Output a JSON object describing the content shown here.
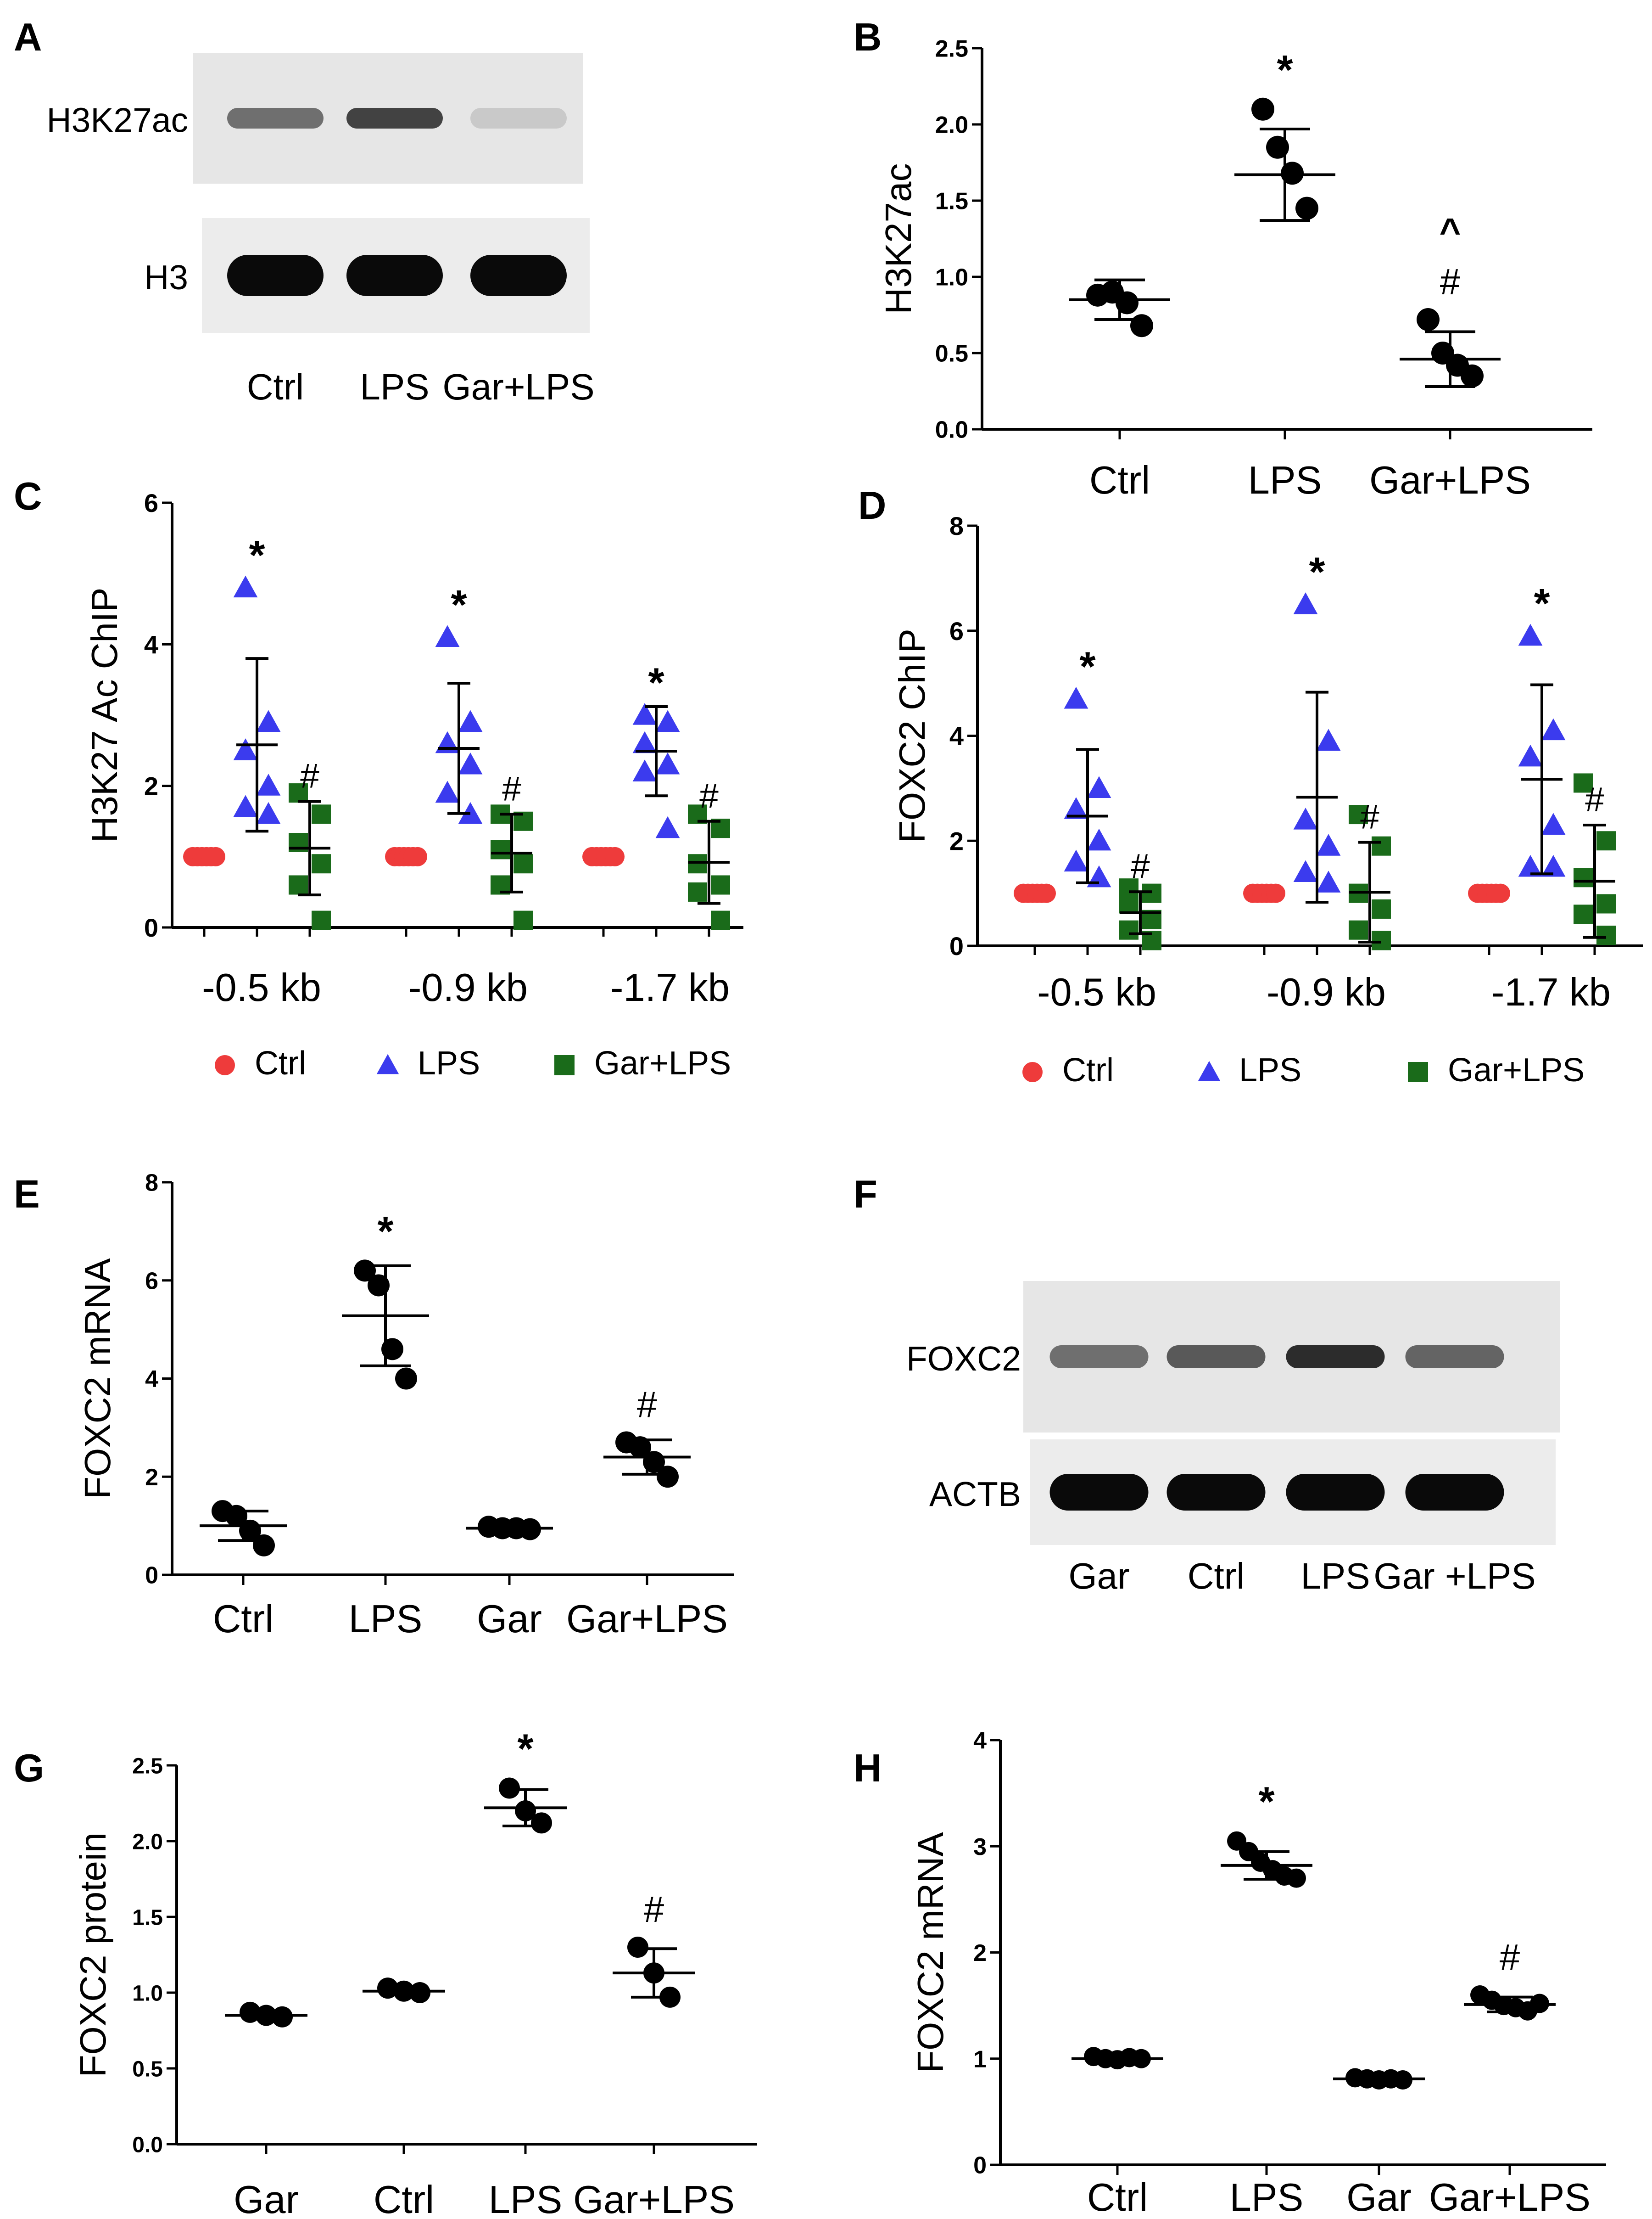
{
  "figure": {
    "panel_letters": [
      "A",
      "B",
      "C",
      "D",
      "E",
      "F",
      "G",
      "H"
    ],
    "blots": {
      "A": {
        "rows": [
          {
            "label": "H3K27ac",
            "band_intensity": [
              0.55,
              0.75,
              0.15
            ]
          },
          {
            "label": "H3",
            "band_intensity": [
              1.0,
              1.0,
              1.0
            ]
          }
        ],
        "lanes": [
          "Ctrl",
          "LPS",
          "Gar+LPS"
        ]
      },
      "F": {
        "rows": [
          {
            "label": "FOXC2",
            "band_intensity": [
              0.55,
              0.65,
              0.85,
              0.6
            ]
          },
          {
            "label": "ACTB",
            "band_intensity": [
              1.0,
              1.0,
              1.0,
              1.0
            ]
          }
        ],
        "lanes": [
          "Gar",
          "Ctrl",
          "LPS",
          "Gar +LPS"
        ]
      }
    },
    "legend": {
      "items": [
        {
          "label": "Ctrl",
          "marker": "circle",
          "color": "#ee3b3b"
        },
        {
          "label": "LPS",
          "marker": "triangle",
          "color": "#3b3bee"
        },
        {
          "label": "Gar+LPS",
          "marker": "square",
          "color": "#1a6b1a"
        }
      ]
    }
  },
  "chart_data": [
    {
      "panel": "B",
      "type": "scatter",
      "title": "",
      "xlabel": "",
      "ylabel": "H3K27ac",
      "ylim": [
        0,
        2.5
      ],
      "yticks": [
        "0.0",
        "0.5",
        "1.0",
        "1.5",
        "2.0",
        "2.5"
      ],
      "categories": [
        "Ctrl",
        "LPS",
        "Gar+LPS"
      ],
      "series": [
        {
          "name": "Ctrl",
          "points": [
            0.88,
            0.9,
            0.83,
            0.68
          ],
          "mean": 0.85,
          "sd": 0.13,
          "annotation": ""
        },
        {
          "name": "LPS",
          "points": [
            2.1,
            1.85,
            1.68,
            1.45
          ],
          "mean": 1.67,
          "sd": 0.3,
          "annotation": "*"
        },
        {
          "name": "Gar+LPS",
          "points": [
            0.72,
            0.5,
            0.42,
            0.35
          ],
          "mean": 0.46,
          "sd": 0.18,
          "annotation": "^\n#"
        }
      ]
    },
    {
      "panel": "C",
      "type": "scatter",
      "title": "",
      "xlabel": "",
      "ylabel": "H3K27 Ac ChIP",
      "ylim": [
        0,
        6
      ],
      "yticks": [
        "0",
        "2",
        "4",
        "6"
      ],
      "categories": [
        "-0.5 kb",
        "-0.9 kb",
        "-1.7 kb"
      ],
      "series_names": [
        "Ctrl",
        "LPS",
        "Gar+LPS"
      ],
      "groups": [
        {
          "category": "-0.5 kb",
          "series": [
            {
              "name": "Ctrl",
              "points": [
                1,
                1,
                1,
                1,
                1,
                1
              ],
              "mean": 1.0,
              "sd": 0.0,
              "annotation": ""
            },
            {
              "name": "LPS",
              "points": [
                4.8,
                2.9,
                2.5,
                2.0,
                1.7,
                1.6
              ],
              "mean": 2.58,
              "sd": 1.22,
              "annotation": "*"
            },
            {
              "name": "Gar+LPS",
              "points": [
                1.9,
                1.6,
                1.2,
                0.9,
                0.6,
                0.1
              ],
              "mean": 1.12,
              "sd": 0.66,
              "annotation": "#"
            }
          ]
        },
        {
          "category": "-0.9 kb",
          "series": [
            {
              "name": "Ctrl",
              "points": [
                1,
                1,
                1,
                1,
                1,
                1
              ],
              "mean": 1.0,
              "sd": 0.0,
              "annotation": ""
            },
            {
              "name": "LPS",
              "points": [
                4.1,
                2.9,
                2.6,
                2.3,
                1.9,
                1.6
              ],
              "mean": 2.53,
              "sd": 0.92,
              "annotation": "*"
            },
            {
              "name": "Gar+LPS",
              "points": [
                1.6,
                1.5,
                1.1,
                0.9,
                0.6,
                0.1
              ],
              "mean": 1.05,
              "sd": 0.55,
              "annotation": "#"
            }
          ]
        },
        {
          "category": "-1.7 kb",
          "series": [
            {
              "name": "Ctrl",
              "points": [
                1,
                1,
                1,
                1,
                1,
                1
              ],
              "mean": 1.0,
              "sd": 0.0,
              "annotation": ""
            },
            {
              "name": "LPS",
              "points": [
                3.0,
                2.9,
                2.6,
                2.3,
                2.2,
                1.4
              ],
              "mean": 2.49,
              "sd": 0.63,
              "annotation": "*"
            },
            {
              "name": "Gar+LPS",
              "points": [
                1.6,
                1.4,
                0.9,
                0.6,
                0.5,
                0.1
              ],
              "mean": 0.92,
              "sd": 0.58,
              "annotation": "#"
            }
          ]
        }
      ]
    },
    {
      "panel": "D",
      "type": "scatter",
      "title": "",
      "xlabel": "",
      "ylabel": "FOXC2 ChIP",
      "ylim": [
        0,
        8
      ],
      "yticks": [
        "0",
        "2",
        "4",
        "6",
        "8"
      ],
      "categories": [
        "-0.5 kb",
        "-0.9 kb",
        "-1.7 kb"
      ],
      "series_names": [
        "Ctrl",
        "LPS",
        "Gar+LPS"
      ],
      "groups": [
        {
          "category": "-0.5 kb",
          "series": [
            {
              "name": "Ctrl",
              "points": [
                1,
                1,
                1,
                1,
                1,
                1
              ],
              "mean": 1.0,
              "sd": 0.0,
              "annotation": ""
            },
            {
              "name": "LPS",
              "points": [
                4.7,
                3.0,
                2.6,
                2.0,
                1.6,
                1.3
              ],
              "mean": 2.47,
              "sd": 1.27,
              "annotation": "*"
            },
            {
              "name": "Gar+LPS",
              "points": [
                1.1,
                1.0,
                0.8,
                0.5,
                0.3,
                0.1
              ],
              "mean": 0.63,
              "sd": 0.4,
              "annotation": "#"
            }
          ]
        },
        {
          "category": "-0.9 kb",
          "series": [
            {
              "name": "Ctrl",
              "points": [
                1,
                1,
                1,
                1,
                1,
                1
              ],
              "mean": 1.0,
              "sd": 0.0,
              "annotation": ""
            },
            {
              "name": "LPS",
              "points": [
                6.5,
                3.9,
                2.4,
                1.9,
                1.4,
                1.2
              ],
              "mean": 2.83,
              "sd": 2.0,
              "annotation": "*"
            },
            {
              "name": "Gar+LPS",
              "points": [
                2.5,
                1.9,
                1.0,
                0.7,
                0.3,
                0.1
              ],
              "mean": 1.02,
              "sd": 0.95,
              "annotation": "#"
            }
          ]
        },
        {
          "category": "-1.7 kb",
          "series": [
            {
              "name": "Ctrl",
              "points": [
                1,
                1,
                1,
                1,
                1,
                1
              ],
              "mean": 1.0,
              "sd": 0.0,
              "annotation": ""
            },
            {
              "name": "LPS",
              "points": [
                5.9,
                4.1,
                3.6,
                2.3,
                1.5,
                1.5
              ],
              "mean": 3.17,
              "sd": 1.8,
              "annotation": "*"
            },
            {
              "name": "Gar+LPS",
              "points": [
                3.1,
                2.0,
                1.3,
                0.8,
                0.6,
                0.2
              ],
              "mean": 1.23,
              "sd": 1.07,
              "annotation": "#"
            }
          ]
        }
      ]
    },
    {
      "panel": "E",
      "type": "scatter",
      "title": "",
      "xlabel": "",
      "ylabel": "FOXC2 mRNA",
      "ylim": [
        0,
        8
      ],
      "yticks": [
        "0",
        "2",
        "4",
        "6",
        "8"
      ],
      "categories": [
        "Ctrl",
        "LPS",
        "Gar",
        "Gar+LPS"
      ],
      "series": [
        {
          "name": "Ctrl",
          "points": [
            1.3,
            1.2,
            0.9,
            0.6
          ],
          "mean": 1.0,
          "sd": 0.3,
          "annotation": ""
        },
        {
          "name": "LPS",
          "points": [
            6.2,
            5.9,
            4.6,
            4.0
          ],
          "mean": 5.28,
          "sd": 1.02,
          "annotation": "*"
        },
        {
          "name": "Gar",
          "points": [
            0.98,
            0.95,
            0.95,
            0.93
          ],
          "mean": 0.95,
          "sd": 0.03,
          "annotation": ""
        },
        {
          "name": "Gar+LPS",
          "points": [
            2.7,
            2.6,
            2.3,
            2.0
          ],
          "mean": 2.4,
          "sd": 0.35,
          "annotation": "#"
        }
      ]
    },
    {
      "panel": "G",
      "type": "scatter",
      "title": "",
      "xlabel": "",
      "ylabel": "FOXC2 protein",
      "ylim": [
        0,
        2.5
      ],
      "yticks": [
        "0.0",
        "0.5",
        "1.0",
        "1.5",
        "2.0",
        "2.5"
      ],
      "categories": [
        "Gar",
        "Ctrl",
        "LPS",
        "Gar+LPS"
      ],
      "series": [
        {
          "name": "Gar",
          "points": [
            0.87,
            0.85,
            0.84
          ],
          "mean": 0.85,
          "sd": 0.02,
          "annotation": ""
        },
        {
          "name": "Ctrl",
          "points": [
            1.03,
            1.01,
            1.0
          ],
          "mean": 1.01,
          "sd": 0.02,
          "annotation": ""
        },
        {
          "name": "LPS",
          "points": [
            2.35,
            2.2,
            2.12
          ],
          "mean": 2.22,
          "sd": 0.12,
          "annotation": "*"
        },
        {
          "name": "Gar+LPS",
          "points": [
            1.3,
            1.13,
            0.97
          ],
          "mean": 1.13,
          "sd": 0.16,
          "annotation": "#"
        }
      ]
    },
    {
      "panel": "H",
      "type": "scatter",
      "title": "",
      "xlabel": "",
      "ylabel": "FOXC2 mRNA",
      "ylim": [
        0,
        4
      ],
      "yticks": [
        "0",
        "1",
        "2",
        "3",
        "4"
      ],
      "categories": [
        "Ctrl",
        "LPS",
        "Gar",
        "Gar+LPS"
      ],
      "series": [
        {
          "name": "Ctrl",
          "points": [
            1.02,
            1.0,
            0.99,
            1.01,
            1.0
          ],
          "mean": 1.0,
          "sd": 0.02,
          "annotation": ""
        },
        {
          "name": "LPS",
          "points": [
            3.05,
            2.95,
            2.85,
            2.78,
            2.72,
            2.7
          ],
          "mean": 2.82,
          "sd": 0.13,
          "annotation": "*"
        },
        {
          "name": "Gar",
          "points": [
            0.82,
            0.81,
            0.8,
            0.81,
            0.8
          ],
          "mean": 0.81,
          "sd": 0.01,
          "annotation": ""
        },
        {
          "name": "Gar+LPS",
          "points": [
            1.6,
            1.55,
            1.5,
            1.48,
            1.45,
            1.52
          ],
          "mean": 1.51,
          "sd": 0.07,
          "annotation": "#"
        }
      ]
    }
  ]
}
